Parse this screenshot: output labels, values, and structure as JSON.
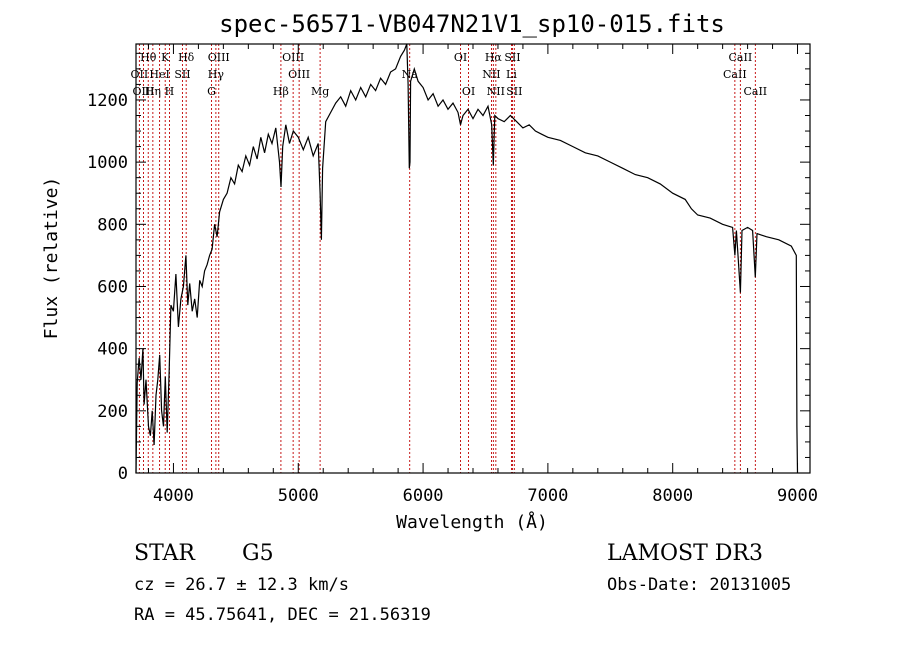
{
  "chart_data": {
    "type": "line",
    "title": "spec-56571-VB047N21V1_sp10-015.fits",
    "xlabel": "Wavelength (Å)",
    "ylabel": "Flux (relative)",
    "xlim": [
      3700,
      9100
    ],
    "ylim": [
      0,
      1380
    ],
    "xticks": [
      4000,
      5000,
      6000,
      7000,
      8000,
      9000
    ],
    "yticks": [
      0,
      200,
      400,
      600,
      800,
      1000,
      1200
    ],
    "series": [
      {
        "name": "flux",
        "points": [
          [
            3700,
            0
          ],
          [
            3710,
            290
          ],
          [
            3725,
            370
          ],
          [
            3740,
            300
          ],
          [
            3755,
            400
          ],
          [
            3765,
            220
          ],
          [
            3780,
            300
          ],
          [
            3800,
            150
          ],
          [
            3815,
            120
          ],
          [
            3830,
            200
          ],
          [
            3845,
            90
          ],
          [
            3860,
            250
          ],
          [
            3875,
            300
          ],
          [
            3890,
            380
          ],
          [
            3905,
            200
          ],
          [
            3920,
            150
          ],
          [
            3935,
            310
          ],
          [
            3950,
            130
          ],
          [
            3965,
            320
          ],
          [
            3980,
            540
          ],
          [
            4000,
            520
          ],
          [
            4020,
            640
          ],
          [
            4040,
            470
          ],
          [
            4060,
            560
          ],
          [
            4080,
            600
          ],
          [
            4100,
            700
          ],
          [
            4115,
            540
          ],
          [
            4130,
            610
          ],
          [
            4150,
            520
          ],
          [
            4170,
            560
          ],
          [
            4190,
            500
          ],
          [
            4210,
            620
          ],
          [
            4230,
            600
          ],
          [
            4250,
            650
          ],
          [
            4270,
            670
          ],
          [
            4290,
            700
          ],
          [
            4310,
            720
          ],
          [
            4330,
            800
          ],
          [
            4350,
            760
          ],
          [
            4370,
            840
          ],
          [
            4400,
            880
          ],
          [
            4430,
            900
          ],
          [
            4460,
            950
          ],
          [
            4490,
            930
          ],
          [
            4520,
            990
          ],
          [
            4550,
            970
          ],
          [
            4580,
            1020
          ],
          [
            4610,
            990
          ],
          [
            4640,
            1050
          ],
          [
            4670,
            1010
          ],
          [
            4700,
            1080
          ],
          [
            4730,
            1030
          ],
          [
            4760,
            1090
          ],
          [
            4790,
            1060
          ],
          [
            4820,
            1110
          ],
          [
            4850,
            1000
          ],
          [
            4862,
            920
          ],
          [
            4875,
            1050
          ],
          [
            4900,
            1120
          ],
          [
            4930,
            1060
          ],
          [
            4960,
            1100
          ],
          [
            5000,
            1080
          ],
          [
            5040,
            1040
          ],
          [
            5080,
            1080
          ],
          [
            5120,
            1020
          ],
          [
            5160,
            1060
          ],
          [
            5175,
            900
          ],
          [
            5185,
            750
          ],
          [
            5195,
            980
          ],
          [
            5220,
            1130
          ],
          [
            5260,
            1160
          ],
          [
            5300,
            1190
          ],
          [
            5340,
            1210
          ],
          [
            5380,
            1180
          ],
          [
            5420,
            1230
          ],
          [
            5460,
            1200
          ],
          [
            5500,
            1240
          ],
          [
            5540,
            1210
          ],
          [
            5580,
            1250
          ],
          [
            5620,
            1230
          ],
          [
            5660,
            1270
          ],
          [
            5700,
            1250
          ],
          [
            5740,
            1290
          ],
          [
            5780,
            1300
          ],
          [
            5820,
            1340
          ],
          [
            5850,
            1360
          ],
          [
            5870,
            1380
          ],
          [
            5880,
            1250
          ],
          [
            5890,
            980
          ],
          [
            5895,
            1000
          ],
          [
            5900,
            1260
          ],
          [
            5930,
            1300
          ],
          [
            5960,
            1260
          ],
          [
            6000,
            1240
          ],
          [
            6040,
            1200
          ],
          [
            6080,
            1220
          ],
          [
            6120,
            1180
          ],
          [
            6160,
            1200
          ],
          [
            6200,
            1170
          ],
          [
            6240,
            1190
          ],
          [
            6280,
            1160
          ],
          [
            6300,
            1120
          ],
          [
            6320,
            1150
          ],
          [
            6360,
            1170
          ],
          [
            6400,
            1140
          ],
          [
            6440,
            1170
          ],
          [
            6480,
            1150
          ],
          [
            6520,
            1180
          ],
          [
            6550,
            1120
          ],
          [
            6563,
            990
          ],
          [
            6575,
            1150
          ],
          [
            6600,
            1140
          ],
          [
            6650,
            1130
          ],
          [
            6700,
            1150
          ],
          [
            6750,
            1130
          ],
          [
            6800,
            1110
          ],
          [
            6850,
            1120
          ],
          [
            6900,
            1100
          ],
          [
            6950,
            1090
          ],
          [
            7000,
            1080
          ],
          [
            7100,
            1070
          ],
          [
            7200,
            1050
          ],
          [
            7300,
            1030
          ],
          [
            7400,
            1020
          ],
          [
            7500,
            1000
          ],
          [
            7600,
            980
          ],
          [
            7700,
            960
          ],
          [
            7800,
            950
          ],
          [
            7900,
            930
          ],
          [
            8000,
            900
          ],
          [
            8100,
            880
          ],
          [
            8150,
            850
          ],
          [
            8200,
            830
          ],
          [
            8300,
            820
          ],
          [
            8400,
            800
          ],
          [
            8480,
            790
          ],
          [
            8498,
            700
          ],
          [
            8510,
            780
          ],
          [
            8542,
            580
          ],
          [
            8555,
            780
          ],
          [
            8600,
            790
          ],
          [
            8640,
            780
          ],
          [
            8662,
            630
          ],
          [
            8675,
            770
          ],
          [
            8750,
            760
          ],
          [
            8850,
            750
          ],
          [
            8950,
            730
          ],
          [
            8990,
            700
          ],
          [
            8995,
            150
          ],
          [
            9000,
            0
          ]
        ]
      }
    ],
    "line_markers": {
      "line1": [
        {
          "name": "Hθ",
          "wavelength": 3798
        },
        {
          "name": "K",
          "wavelength": 3934
        },
        {
          "name": "Hδ",
          "wavelength": 4102
        },
        {
          "name": "OIII",
          "wavelength": 4363
        },
        {
          "name": "OIII",
          "wavelength": 4959
        },
        {
          "name": "OI",
          "wavelength": 6300
        },
        {
          "name": "Hα",
          "wavelength": 6563
        },
        {
          "name": "SII",
          "wavelength": 6716
        },
        {
          "name": "CaII",
          "wavelength": 8542
        }
      ],
      "line2": [
        {
          "name": "OII",
          "wavelength": 3727
        },
        {
          "name": "HeI",
          "wavelength": 3889
        },
        {
          "name": "SII",
          "wavelength": 4072
        },
        {
          "name": "Hγ",
          "wavelength": 4340
        },
        {
          "name": "OIII",
          "wavelength": 5007
        },
        {
          "name": "Na",
          "wavelength": 5893
        },
        {
          "name": "NII",
          "wavelength": 6548
        },
        {
          "name": "Li",
          "wavelength": 6708
        },
        {
          "name": "CaII",
          "wavelength": 8498
        }
      ],
      "line3": [
        {
          "name": "OIII",
          "wavelength": 3760
        },
        {
          "name": "Hη",
          "wavelength": 3835
        },
        {
          "name": "H",
          "wavelength": 3968
        },
        {
          "name": "G",
          "wavelength": 4305
        },
        {
          "name": "Hβ",
          "wavelength": 4861
        },
        {
          "name": "Mg",
          "wavelength": 5175
        },
        {
          "name": "OI",
          "wavelength": 6364
        },
        {
          "name": "NII",
          "wavelength": 6583
        },
        {
          "name": "SII",
          "wavelength": 6731
        },
        {
          "name": "CaII",
          "wavelength": 8662
        }
      ]
    },
    "annotations": {
      "object_class": "STAR",
      "subclass": "G5",
      "survey": "LAMOST DR3",
      "redshift": "cz = 26.7 ± 12.3 km/s",
      "obs_date": "Obs-Date: 20131005",
      "coords": "RA =  45.75641, DEC =  21.56319"
    },
    "colors": {
      "line": "#000000",
      "marker": "#c00000",
      "axis": "#000000"
    }
  }
}
